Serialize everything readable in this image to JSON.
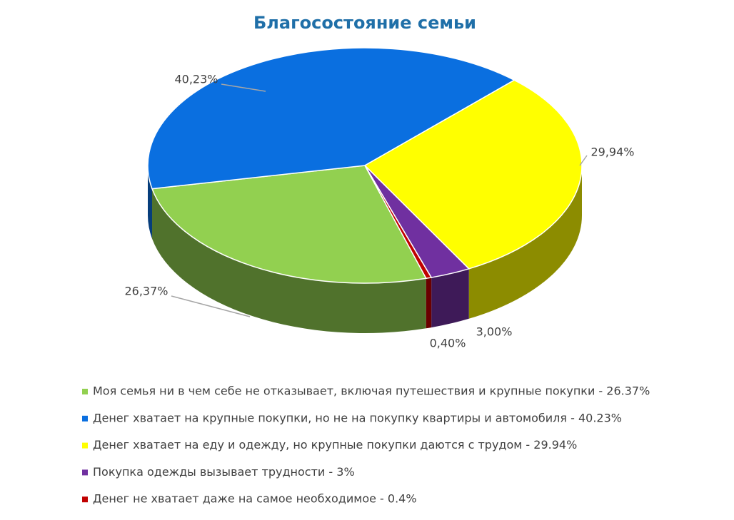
{
  "chart_data": {
    "type": "pie3d",
    "title": "Благосостояние семьи",
    "categories": [
      "Моя семья ни в чем себе не отказывает, включая путешествия и крупные покупки - 26.37%",
      "Денег хватает на крупные покупки, но не на покупку квартиры и автомобиля - 40.23%",
      "Денег хватает на еду и одежду, но крупные покупки даются с трудом - 29.94%",
      "Покупка одежды вызывает трудности - 3%",
      "Денег не хватает даже на самое необходимое - 0.4%"
    ],
    "values": [
      26.37,
      40.23,
      29.94,
      3,
      0.4
    ],
    "value_labels": [
      "26,37%",
      "40,23%",
      "29,94%",
      "3,00%",
      "0,40%"
    ],
    "colors": [
      "#92d050",
      "#0a6fe0",
      "#ffff00",
      "#7030a0",
      "#c00000"
    ],
    "legend": "bottom"
  }
}
